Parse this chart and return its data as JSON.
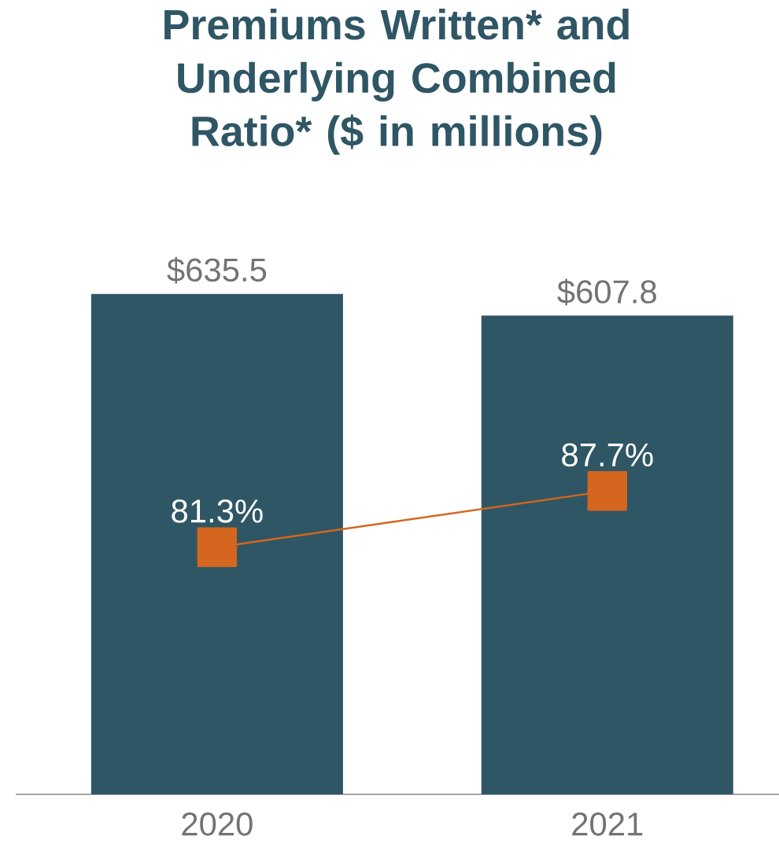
{
  "chart_data": {
    "type": "bar",
    "title": "Premiums Written* and Underlying Combined Ratio* ($ in millions)",
    "categories": [
      "2020",
      "2021"
    ],
    "series": [
      {
        "color": "#2f5664",
        "values": [
          635.5,
          607.8
        ],
        "value_labels": [
          "$635.5",
          "$607.8"
        ]
      },
      {
        "type": "line",
        "axis": "y2",
        "color": "#d4661f",
        "marker": "square",
        "values": [
          81.3,
          87.7
        ],
        "value_labels": [
          "81.3%",
          "87.7%"
        ]
      }
    ],
    "tick_labels": "x"
  }
}
